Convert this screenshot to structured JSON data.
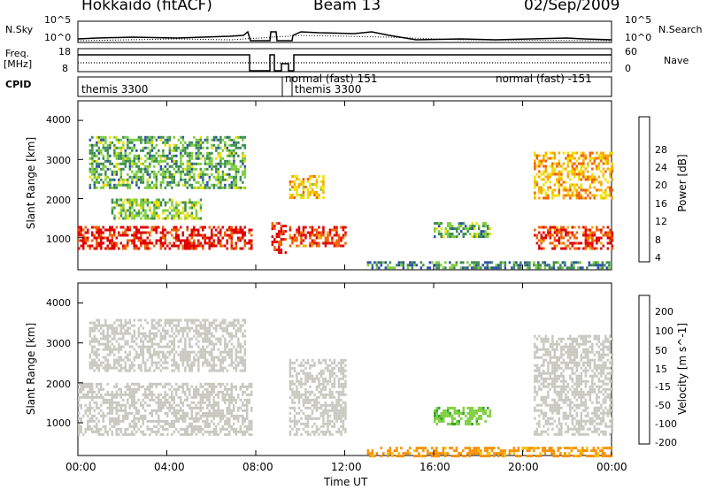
{
  "header": {
    "station": "Hokkaido (fitACF)",
    "beam": "Beam 13",
    "date": "02/Sep/2009"
  },
  "top_panels": {
    "nsky_label": "N.Sky",
    "nsky_ticks": [
      "10^5",
      "10^0"
    ],
    "nsky_right_ticks": [
      "10^5",
      "10^0"
    ],
    "nsearch_label": "N.Search",
    "freq_label": "Freq.",
    "freq_unit": "[MHz]",
    "freq_ticks": [
      "18",
      "8"
    ],
    "nave_ticks": [
      "60",
      "0"
    ],
    "nave_label": "Nave",
    "cpid_label": "CPID",
    "cpid_segments": [
      {
        "label": "themis 3300",
        "start_h": 0.0,
        "end_h": 8.0
      },
      {
        "label": "normal (fast) 151",
        "start_h": 9.9,
        "end_h": 13.5
      },
      {
        "label": "themis 3300",
        "start_h": 9.9,
        "end_h": 11.5
      },
      {
        "label": "normal (fast) -151",
        "start_h": 13.5,
        "end_h": 24.0
      }
    ]
  },
  "axes": {
    "x_ticks": [
      "00:00",
      "04:00",
      "08:00",
      "12:00",
      "16:00",
      "20:00",
      "00:00"
    ],
    "x_label": "Time UT",
    "y_label": "Slant Range [km]",
    "y_ticks": [
      "4000",
      "3000",
      "2000",
      "1000"
    ]
  },
  "power_colorbar": {
    "label": "Power [dB]",
    "ticks": [
      "28",
      "24",
      "20",
      "16",
      "12",
      "8",
      "4"
    ],
    "colors": [
      "#0000ff",
      "#2a4faa",
      "#3c8c50",
      "#7ccc3c",
      "#f0e000",
      "#f8a800",
      "#f06000",
      "#e00000"
    ]
  },
  "velocity_colorbar": {
    "label": "Velocity [m s^-1]",
    "ticks": [
      "200",
      "100",
      "50",
      "15",
      "-15",
      "-50",
      "-100",
      "-200"
    ],
    "colors": [
      "#2030c0",
      "#4070c0",
      "#30a030",
      "#80d040",
      "#c8c8c0",
      "#f8c000",
      "#f89000",
      "#f06000",
      "#e00000"
    ]
  },
  "chart_data": [
    {
      "type": "heatmap",
      "title": "Power",
      "xlabel": "Time UT",
      "ylabel": "Slant Range [km]",
      "xlim": [
        0,
        24
      ],
      "ylim": [
        180,
        4500
      ],
      "colorbar_label": "Power [dB]",
      "colorbar_range": [
        0,
        32
      ],
      "regions": [
        {
          "t0": 0.0,
          "t1": 7.8,
          "r0": 700,
          "r1": 1300,
          "value": 30
        },
        {
          "t0": 1.5,
          "t1": 5.5,
          "r0": 1500,
          "r1": 2000,
          "value": 14
        },
        {
          "t0": 0.5,
          "t1": 7.5,
          "r0": 2300,
          "r1": 3600,
          "value": 12
        },
        {
          "t0": 8.7,
          "t1": 9.3,
          "r0": 600,
          "r1": 1400,
          "value": 30
        },
        {
          "t0": 9.5,
          "t1": 12.0,
          "r0": 800,
          "r1": 1300,
          "value": 28
        },
        {
          "t0": 9.5,
          "t1": 11.0,
          "r0": 2000,
          "r1": 2600,
          "value": 20
        },
        {
          "t0": 16.0,
          "t1": 18.5,
          "r0": 1000,
          "r1": 1400,
          "value": 12
        },
        {
          "t0": 13.0,
          "t1": 24.0,
          "r0": 200,
          "r1": 400,
          "value": 10
        },
        {
          "t0": 20.5,
          "t1": 24.0,
          "r0": 700,
          "r1": 1300,
          "value": 28
        },
        {
          "t0": 20.5,
          "t1": 24.0,
          "r0": 2000,
          "r1": 3200,
          "value": 22
        }
      ]
    },
    {
      "type": "heatmap",
      "title": "Velocity",
      "xlabel": "Time UT",
      "ylabel": "Slant Range [km]",
      "xlim": [
        0,
        24
      ],
      "ylim": [
        180,
        4500
      ],
      "colorbar_label": "Velocity [m s^-1]",
      "colorbar_range": [
        -200,
        200
      ],
      "regions": [
        {
          "t0": 0.0,
          "t1": 7.8,
          "r0": 700,
          "r1": 2000,
          "value": 0
        },
        {
          "t0": 0.5,
          "t1": 7.5,
          "r0": 2300,
          "r1": 3600,
          "value": 0
        },
        {
          "t0": 9.5,
          "t1": 12.0,
          "r0": 700,
          "r1": 2600,
          "value": 0
        },
        {
          "t0": 16.0,
          "t1": 18.5,
          "r0": 1000,
          "r1": 1400,
          "value": 40
        },
        {
          "t0": 13.0,
          "t1": 24.0,
          "r0": 200,
          "r1": 400,
          "value": -60
        },
        {
          "t0": 20.5,
          "t1": 24.0,
          "r0": 700,
          "r1": 3200,
          "value": 0
        }
      ]
    }
  ]
}
